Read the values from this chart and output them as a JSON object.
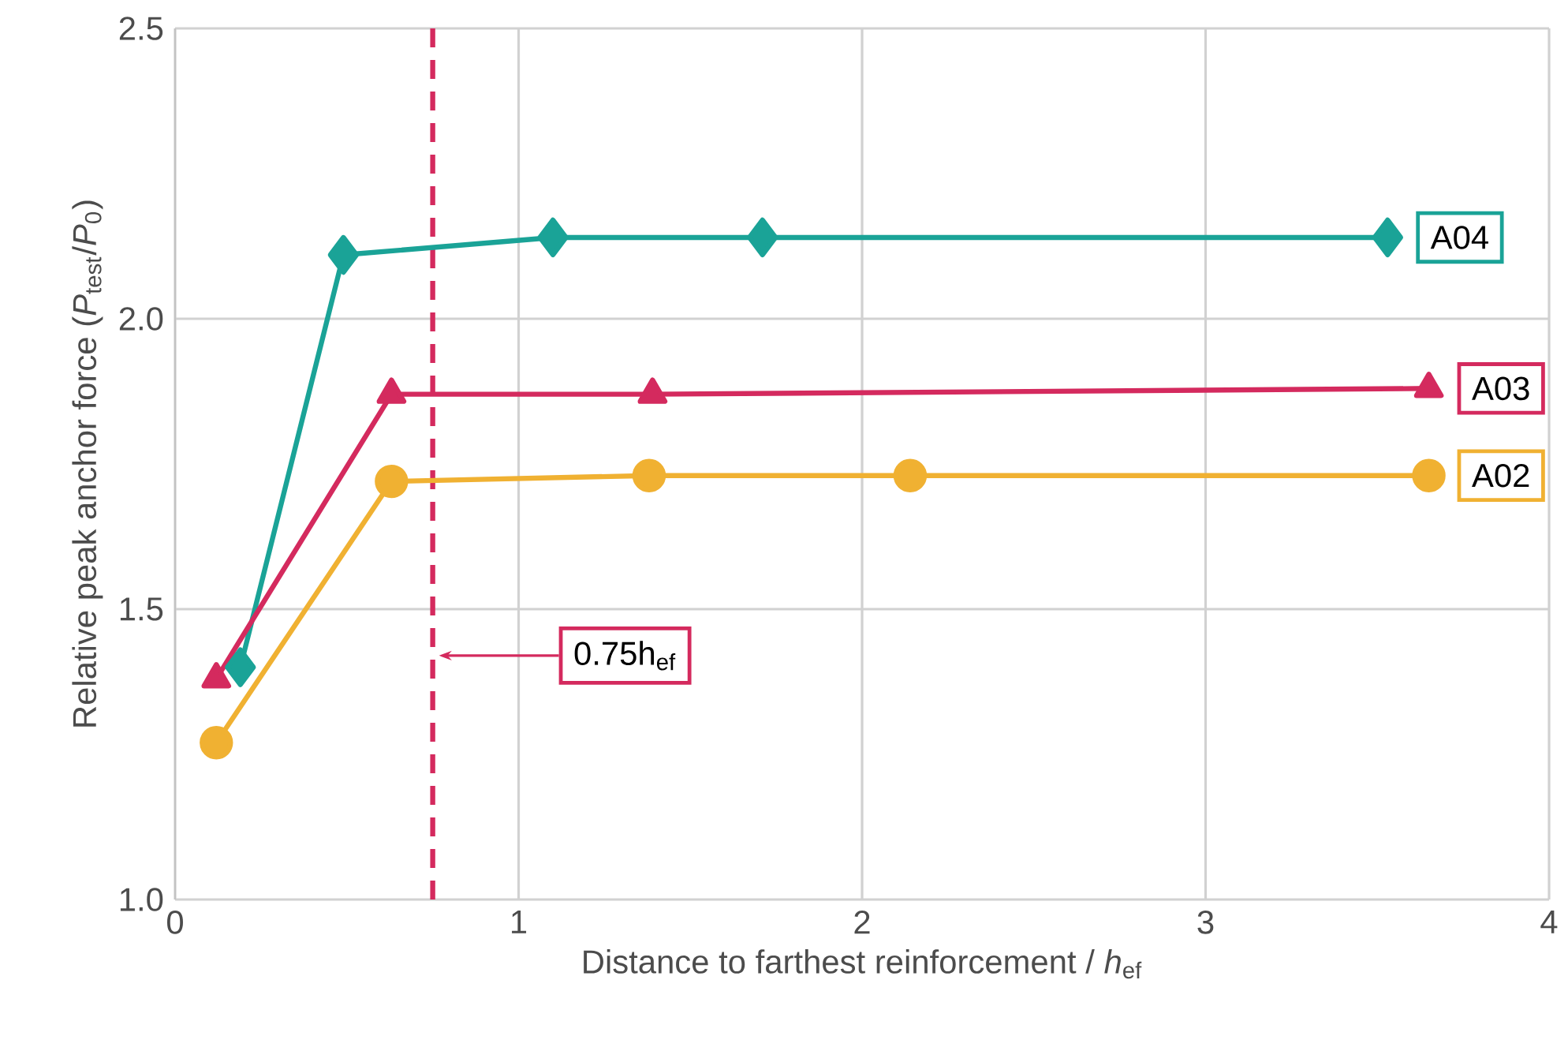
{
  "chart_data": {
    "type": "line",
    "xlabel": "Distance to farthest reinforcement / *h*$_{ef}$",
    "ylabel": "Relative peak anchor force (*P*$_{test}$/*P*$_{0}$)",
    "xlim": [
      0,
      4
    ],
    "xticks": [
      0,
      1,
      2,
      3,
      4
    ],
    "ylim": [
      1.0,
      2.5
    ],
    "yticks": [
      {
        "value": 1.0,
        "label": "1.0"
      },
      1.5,
      {
        "value": 2.0,
        "label": "2.0"
      },
      2.5
    ],
    "grid": true,
    "legend": false,
    "line_style": "solid",
    "series": [
      {
        "name": "A04",
        "color": "#1aa397",
        "marker": "diamond",
        "x": [
          0.19,
          0.49,
          1.1,
          1.71,
          3.53
        ],
        "values": [
          1.4,
          2.11,
          2.14,
          2.14,
          2.14
        ]
      },
      {
        "name": "A03",
        "color": "#d42a5e",
        "marker": "triangle",
        "x": [
          0.12,
          0.63,
          1.39,
          3.65
        ],
        "values": [
          1.38,
          1.87,
          1.87,
          1.88
        ]
      },
      {
        "name": "A02",
        "color": "#f0b132",
        "marker": "circle",
        "x": [
          0.12,
          0.63,
          1.38,
          2.14,
          3.65
        ],
        "values": [
          1.27,
          1.72,
          1.73,
          1.73,
          1.73
        ]
      }
    ],
    "ref_lines": [
      {
        "axis": "x",
        "value": 0.75,
        "label": "0.75h$_{ef}$",
        "color": "#d42a5e",
        "line_style": "dashed"
      }
    ]
  }
}
